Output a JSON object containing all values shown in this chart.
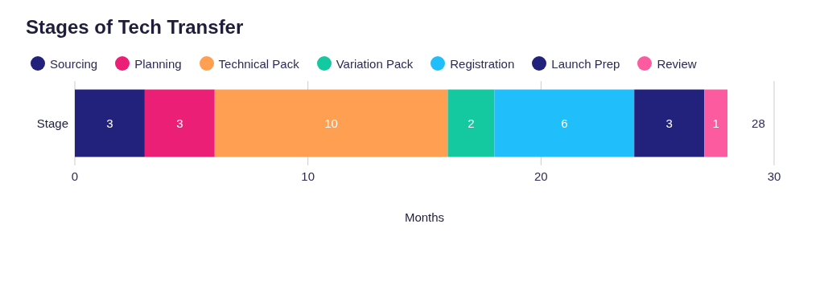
{
  "chart_data": {
    "type": "bar",
    "title": "Stages of Tech Transfer",
    "xlabel": "Months",
    "orientation": "horizontal",
    "stacked": true,
    "categories": [
      "Stage"
    ],
    "series": [
      {
        "name": "Sourcing",
        "color": "#22217c",
        "values": [
          3
        ]
      },
      {
        "name": "Planning",
        "color": "#ec1f76",
        "values": [
          3
        ]
      },
      {
        "name": "Technical Pack",
        "color": "#ff9f52",
        "values": [
          10
        ]
      },
      {
        "name": "Variation Pack",
        "color": "#14c9a0",
        "values": [
          2
        ]
      },
      {
        "name": "Registration",
        "color": "#20bffc",
        "values": [
          6
        ]
      },
      {
        "name": "Launch Prep",
        "color": "#22217c",
        "values": [
          3
        ]
      },
      {
        "name": "Review",
        "color": "#fc5c9f",
        "values": [
          1
        ]
      }
    ],
    "xlim": [
      0,
      30
    ],
    "xticks": [
      0,
      10,
      20,
      30
    ],
    "grid": "x",
    "legend": "top",
    "data_labels": true,
    "totals": [
      "28"
    ]
  }
}
